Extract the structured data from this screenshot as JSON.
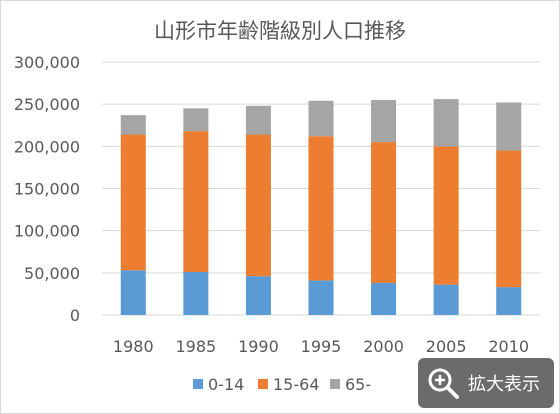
{
  "chart_data": {
    "type": "bar",
    "stacked": true,
    "title": "山形市年齢階級別人口推移",
    "categories": [
      "1980",
      "1985",
      "1990",
      "1995",
      "2000",
      "2005",
      "2010"
    ],
    "series": [
      {
        "name": "0-14",
        "color": "#5b9bd5",
        "values": [
          53000,
          51000,
          46000,
          41000,
          38000,
          36000,
          33000
        ]
      },
      {
        "name": "15-64",
        "color": "#ed7d31",
        "values": [
          161000,
          167000,
          168000,
          171000,
          167000,
          164000,
          162000
        ]
      },
      {
        "name": "65-",
        "color": "#a5a5a5",
        "values": [
          23000,
          27000,
          34000,
          42000,
          50000,
          56000,
          57000
        ]
      }
    ],
    "ylim": [
      0,
      300000
    ],
    "yticks": [
      "0",
      "50,000",
      "100,000",
      "150,000",
      "200,000",
      "250,000",
      "300,000"
    ],
    "grid": true,
    "legend_position": "bottom"
  },
  "zoom_button": {
    "label": "拡大表示",
    "icon": "zoom-in-icon"
  }
}
